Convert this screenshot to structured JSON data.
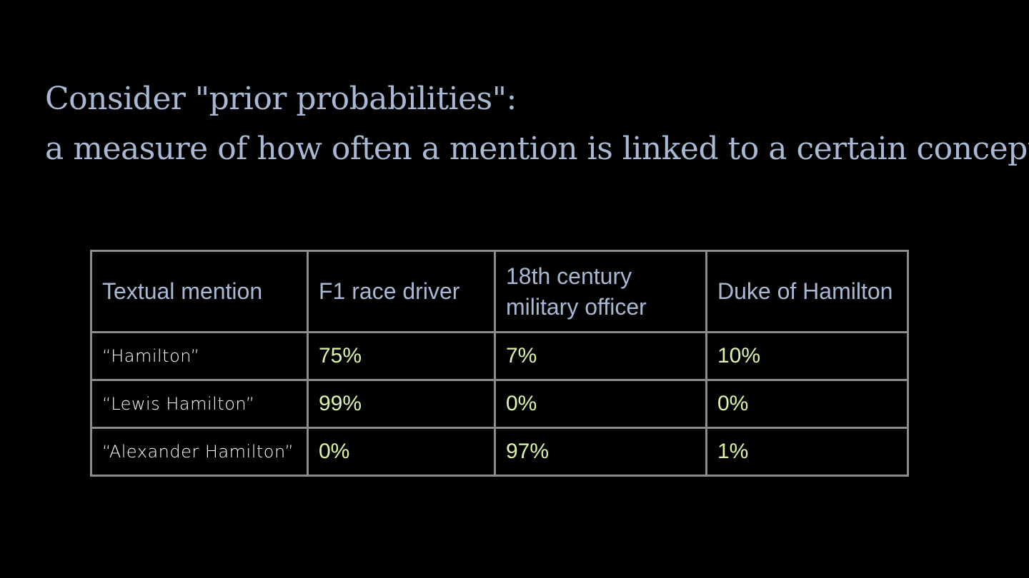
{
  "title": {
    "line1": "Consider \"prior probabilities\":",
    "line2": "a measure of how often a mention is linked to a certain concept"
  },
  "table": {
    "headers": [
      "Textual mention",
      "F1 race driver",
      "18th century military officer",
      "Duke of Hamilton"
    ],
    "rows": [
      {
        "mention": "“Hamilton”",
        "values": [
          "75%",
          "7%",
          "10%"
        ]
      },
      {
        "mention": "“Lewis Hamilton”",
        "values": [
          "99%",
          "0%",
          "0%"
        ]
      },
      {
        "mention": "“Alexander Hamilton”",
        "values": [
          "0%",
          "97%",
          "1%"
        ]
      }
    ]
  },
  "colors": {
    "background": "#000000",
    "title_text": "#A9B8D3",
    "header_text": "#A9B8D3",
    "value_text": "#DCF5A8",
    "mention_text": "#FFFFFF",
    "border": "#8C8C8C"
  }
}
